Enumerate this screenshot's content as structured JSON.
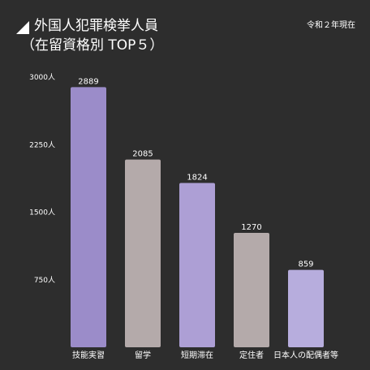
{
  "header": {
    "title": "外国人犯罪検挙人員",
    "subtitle": "（在留資格別 TOP５）",
    "date_note": "令和２年現在"
  },
  "chart_data": {
    "type": "bar",
    "title": "外国人犯罪検挙人員",
    "subtitle": "（在留資格別 TOP５）",
    "categories": [
      "技能実習",
      "留学",
      "短期滞在",
      "定住者",
      "日本人の配偶者等"
    ],
    "values": [
      2889,
      2085,
      1824,
      1270,
      859
    ],
    "value_labels": [
      "2889",
      "2085",
      "1824",
      "1270",
      "859"
    ],
    "ylim": [
      0,
      3000
    ],
    "yticks": [
      750,
      1500,
      2250,
      3000
    ],
    "ytick_labels": [
      "750人",
      "1500人",
      "2250人",
      "3000人"
    ],
    "grid": false,
    "colors": [
      "#9b8cc9",
      "#b4aaaa",
      "#ad9fd5",
      "#b4aaaa",
      "#b7addd"
    ]
  }
}
